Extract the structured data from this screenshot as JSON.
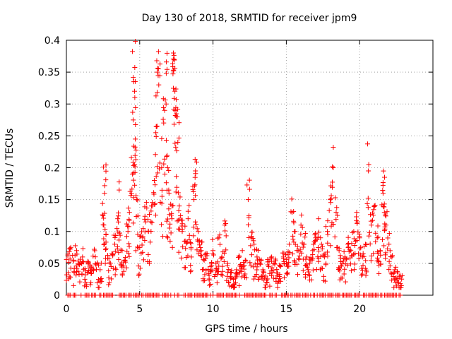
{
  "chart_data": {
    "type": "scatter",
    "title": "Day 130 of 2018, SRMTID for receiver jpm9",
    "xlabel": "GPS time / hours",
    "ylabel": "SRMTID / TECUs",
    "xlim": [
      0,
      25
    ],
    "ylim": [
      0,
      0.4
    ],
    "xticks": [
      0,
      5,
      10,
      15,
      20
    ],
    "xtick_labels": [
      "0",
      "5",
      "10",
      "15",
      "20"
    ],
    "yticks": [
      0,
      0.05,
      0.1,
      0.15,
      0.2,
      0.25,
      0.3,
      0.35,
      0.4
    ],
    "ytick_labels": [
      "0",
      "0.05",
      "0.1",
      "0.15",
      "0.2",
      "0.25",
      "0.3",
      "0.35",
      "0.4"
    ],
    "grid": true,
    "marker": "+",
    "color": "#ff0000",
    "series": [
      {
        "name": "SRMTID",
        "points": [
          [
            0.1,
            0.062
          ],
          [
            0.3,
            0.075
          ],
          [
            0.5,
            0.055
          ],
          [
            0.7,
            0.07
          ],
          [
            0.9,
            0.048
          ],
          [
            1.1,
            0.06
          ],
          [
            1.3,
            0.038
          ],
          [
            1.5,
            0.052
          ],
          [
            1.7,
            0.044
          ],
          [
            1.9,
            0.072
          ],
          [
            2.1,
            0.05
          ],
          [
            2.3,
            0.04
          ],
          [
            2.5,
            0.125
          ],
          [
            2.6,
            0.16
          ],
          [
            2.7,
            0.095
          ],
          [
            2.9,
            0.058
          ],
          [
            3.1,
            0.065
          ],
          [
            3.3,
            0.08
          ],
          [
            3.5,
            0.12
          ],
          [
            3.6,
            0.165
          ],
          [
            3.8,
            0.07
          ],
          [
            4.0,
            0.055
          ],
          [
            4.2,
            0.1
          ],
          [
            4.3,
            0.13
          ],
          [
            4.5,
            0.19
          ],
          [
            4.6,
            0.335
          ],
          [
            4.65,
            0.32
          ],
          [
            4.7,
            0.245
          ],
          [
            4.8,
            0.15
          ],
          [
            5.0,
            0.075
          ],
          [
            5.2,
            0.09
          ],
          [
            5.4,
            0.115
          ],
          [
            5.6,
            0.1
          ],
          [
            5.8,
            0.14
          ],
          [
            6.0,
            0.18
          ],
          [
            6.1,
            0.255
          ],
          [
            6.2,
            0.35
          ],
          [
            6.3,
            0.33
          ],
          [
            6.5,
            0.2
          ],
          [
            6.7,
            0.29
          ],
          [
            6.8,
            0.3
          ],
          [
            6.9,
            0.2
          ],
          [
            7.0,
            0.16
          ],
          [
            7.2,
            0.12
          ],
          [
            7.3,
            0.38
          ],
          [
            7.35,
            0.37
          ],
          [
            7.4,
            0.32
          ],
          [
            7.5,
            0.28
          ],
          [
            7.6,
            0.24
          ],
          [
            7.7,
            0.14
          ],
          [
            7.9,
            0.1
          ],
          [
            8.1,
            0.085
          ],
          [
            8.3,
            0.12
          ],
          [
            8.5,
            0.075
          ],
          [
            8.7,
            0.15
          ],
          [
            8.8,
            0.195
          ],
          [
            9.0,
            0.1
          ],
          [
            9.2,
            0.07
          ],
          [
            9.4,
            0.055
          ],
          [
            9.6,
            0.065
          ],
          [
            9.8,
            0.045
          ],
          [
            10.0,
            0.07
          ],
          [
            10.2,
            0.05
          ],
          [
            10.4,
            0.09
          ],
          [
            10.6,
            0.06
          ],
          [
            10.8,
            0.11
          ],
          [
            11.0,
            0.05
          ],
          [
            11.2,
            0.035
          ],
          [
            11.4,
            0.025
          ],
          [
            11.6,
            0.04
          ],
          [
            11.8,
            0.06
          ],
          [
            12.0,
            0.07
          ],
          [
            12.2,
            0.055
          ],
          [
            12.4,
            0.15
          ],
          [
            12.6,
            0.09
          ],
          [
            12.8,
            0.08
          ],
          [
            13.0,
            0.06
          ],
          [
            13.2,
            0.05
          ],
          [
            13.4,
            0.04
          ],
          [
            13.6,
            0.03
          ],
          [
            13.8,
            0.045
          ],
          [
            14.0,
            0.06
          ],
          [
            14.2,
            0.05
          ],
          [
            14.4,
            0.035
          ],
          [
            14.6,
            0.045
          ],
          [
            14.8,
            0.06
          ],
          [
            15.0,
            0.05
          ],
          [
            15.2,
            0.08
          ],
          [
            15.4,
            0.13
          ],
          [
            15.6,
            0.1
          ],
          [
            15.8,
            0.07
          ],
          [
            16.0,
            0.11
          ],
          [
            16.2,
            0.08
          ],
          [
            16.4,
            0.06
          ],
          [
            16.6,
            0.05
          ],
          [
            16.8,
            0.07
          ],
          [
            17.0,
            0.09
          ],
          [
            17.2,
            0.12
          ],
          [
            17.4,
            0.08
          ],
          [
            17.6,
            0.06
          ],
          [
            17.8,
            0.1
          ],
          [
            18.0,
            0.15
          ],
          [
            18.2,
            0.2
          ],
          [
            18.4,
            0.13
          ],
          [
            18.6,
            0.07
          ],
          [
            18.8,
            0.05
          ],
          [
            19.0,
            0.06
          ],
          [
            19.2,
            0.08
          ],
          [
            19.4,
            0.07
          ],
          [
            19.6,
            0.1
          ],
          [
            19.8,
            0.13
          ],
          [
            20.0,
            0.09
          ],
          [
            20.2,
            0.06
          ],
          [
            20.4,
            0.08
          ],
          [
            20.6,
            0.195
          ],
          [
            20.8,
            0.11
          ],
          [
            21.0,
            0.14
          ],
          [
            21.2,
            0.09
          ],
          [
            21.4,
            0.07
          ],
          [
            21.6,
            0.16
          ],
          [
            21.7,
            0.185
          ],
          [
            21.8,
            0.11
          ],
          [
            22.0,
            0.08
          ],
          [
            22.2,
            0.06
          ],
          [
            22.4,
            0.04
          ],
          [
            22.6,
            0.035
          ],
          [
            22.8,
            0.03
          ]
        ]
      }
    ],
    "zero_points_x_range": [
      0.1,
      22.8
    ]
  }
}
